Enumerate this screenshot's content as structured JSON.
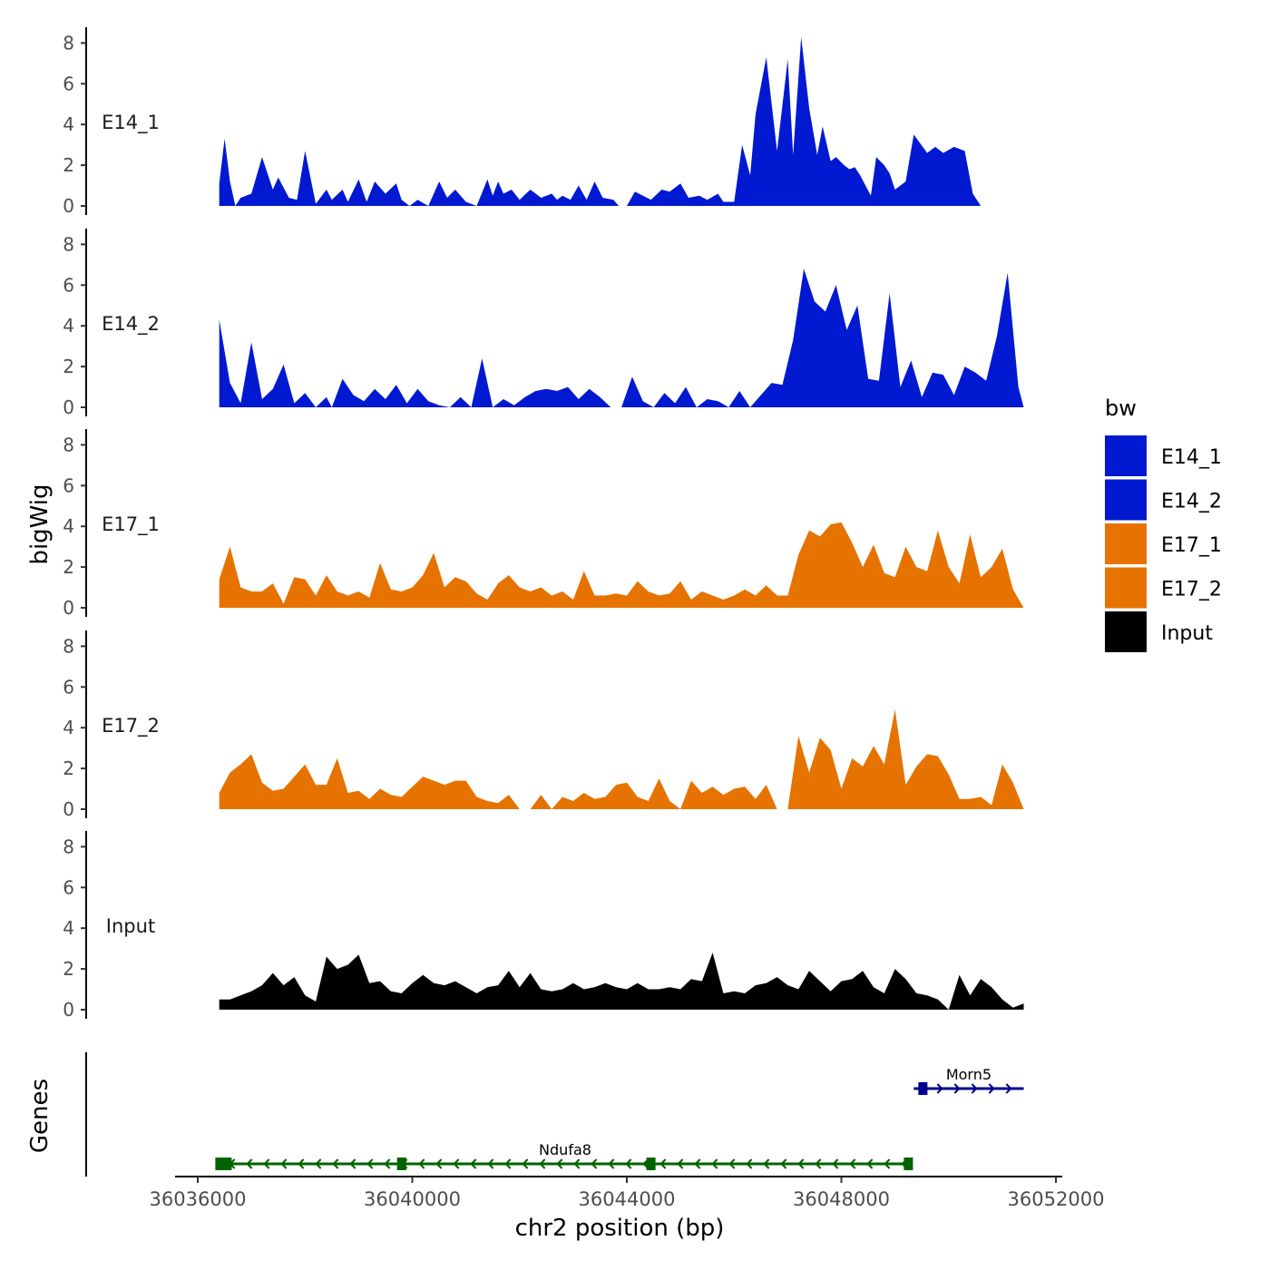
{
  "chart_data": {
    "type": "area",
    "title": "",
    "ylabel": "bigWig",
    "genes_label": "Genes",
    "xlabel": "chr2 position (bp)",
    "x_ticks": [
      36036000,
      36040000,
      36044000,
      36048000,
      36052000
    ],
    "y_ticks": [
      0,
      2,
      4,
      6,
      8
    ],
    "ylim": [
      0,
      8.5
    ],
    "x_range": [
      36036400,
      36051400
    ],
    "legend": {
      "title": "bw",
      "position": "right",
      "entries": [
        {
          "label": "E14_1",
          "color": "#0019d1"
        },
        {
          "label": "E14_2",
          "color": "#0019d1"
        },
        {
          "label": "E17_1",
          "color": "#e67300"
        },
        {
          "label": "E17_2",
          "color": "#e67300"
        },
        {
          "label": "Input",
          "color": "#000000"
        }
      ]
    },
    "series": [
      {
        "name": "E14_1",
        "color": "#0019d1",
        "x": [
          36036400,
          36036500,
          36036600,
          36036700,
          36036800,
          36037000,
          36037200,
          36037400,
          36037500,
          36037700,
          36037850,
          36038000,
          36038200,
          36038400,
          36038500,
          36038700,
          36038800,
          36039000,
          36039150,
          36039300,
          36039500,
          36039700,
          36039800,
          36039950,
          36040100,
          36040300,
          36040500,
          36040650,
          36040800,
          36041000,
          36041200,
          36041400,
          36041500,
          36041600,
          36041700,
          36041850,
          36042000,
          36042200,
          36042400,
          36042600,
          36042700,
          36042800,
          36042950,
          36043100,
          36043250,
          36043400,
          36043550,
          36043750,
          36043850,
          36044000,
          36044150,
          36044300,
          36044450,
          36044650,
          36044800,
          36045000,
          36045150,
          36045350,
          36045500,
          36045700,
          36045800,
          36046000,
          36046150,
          36046300,
          36046400,
          36046600,
          36046800,
          36047000,
          36047100,
          36047250,
          36047400,
          36047550,
          36047650,
          36047800,
          36047900,
          36048050,
          36048150,
          36048250,
          36048350,
          36048550,
          36048650,
          36048800,
          36048900,
          36049000,
          36049200,
          36049350,
          36049600,
          36049750,
          36049900,
          36050100,
          36050300,
          36050450,
          36050600,
          36050700,
          36050900,
          36051100,
          36051250,
          36051400
        ],
        "values": [
          1.1,
          3.3,
          1.2,
          0.0,
          0.4,
          0.6,
          2.4,
          0.8,
          1.4,
          0.4,
          0.3,
          2.7,
          0.1,
          0.8,
          0.3,
          0.8,
          0.2,
          1.3,
          0.2,
          1.2,
          0.6,
          1.1,
          0.3,
          0.0,
          0.3,
          0.0,
          1.2,
          0.4,
          0.8,
          0.2,
          0.0,
          1.3,
          0.5,
          1.2,
          0.6,
          0.8,
          0.3,
          0.8,
          0.4,
          0.6,
          0.3,
          0.5,
          0.3,
          1.0,
          0.3,
          1.2,
          0.4,
          0.3,
          0.0,
          0.0,
          0.7,
          0.5,
          0.3,
          0.8,
          0.7,
          1.1,
          0.4,
          0.5,
          0.3,
          0.6,
          0.2,
          0.2,
          3.0,
          1.5,
          4.5,
          7.3,
          2.7,
          7.2,
          2.5,
          8.3,
          4.8,
          2.5,
          3.9,
          2.2,
          2.4,
          2.0,
          1.8,
          1.9,
          1.5,
          0.5,
          2.4,
          2.0,
          1.6,
          0.8,
          1.2,
          3.5,
          2.6,
          2.9,
          2.6,
          2.9,
          2.7,
          0.6,
          0.0,
          0.0,
          0.0,
          0.0,
          0.0,
          0.0
        ]
      },
      {
        "name": "E14_2",
        "color": "#0019d1",
        "x": [
          36036400,
          36036600,
          36036800,
          36037000,
          36037200,
          36037400,
          36037600,
          36037800,
          36038000,
          36038200,
          36038400,
          36038500,
          36038700,
          36038900,
          36039100,
          36039300,
          36039500,
          36039700,
          36039900,
          36040100,
          36040300,
          36040500,
          36040700,
          36040900,
          36041100,
          36041300,
          36041500,
          36041700,
          36041900,
          36042100,
          36042300,
          36042500,
          36042700,
          36042900,
          36043100,
          36043300,
          36043500,
          36043700,
          36043900,
          36044100,
          36044300,
          36044500,
          36044700,
          36044900,
          36045100,
          36045300,
          36045500,
          36045700,
          36045900,
          36046100,
          36046300,
          36046500,
          36046700,
          36046900,
          36047100,
          36047300,
          36047500,
          36047700,
          36047900,
          36048100,
          36048300,
          36048500,
          36048700,
          36048900,
          36049100,
          36049300,
          36049500,
          36049700,
          36049900,
          36050100,
          36050300,
          36050500,
          36050700,
          36050900,
          36051100,
          36051300,
          36051400
        ],
        "values": [
          4.3,
          1.2,
          0.2,
          3.2,
          0.4,
          0.9,
          2.1,
          0.2,
          0.7,
          0.0,
          0.5,
          0.0,
          1.4,
          0.6,
          0.3,
          0.9,
          0.4,
          1.1,
          0.2,
          0.9,
          0.3,
          0.1,
          0.0,
          0.5,
          0.0,
          2.4,
          0.0,
          0.4,
          0.1,
          0.5,
          0.8,
          0.9,
          0.8,
          1.0,
          0.4,
          0.9,
          0.5,
          0.0,
          0.0,
          1.5,
          0.3,
          0.0,
          0.7,
          0.2,
          1.0,
          0.0,
          0.4,
          0.3,
          0.0,
          0.8,
          0.0,
          0.6,
          1.2,
          1.1,
          3.3,
          6.8,
          5.2,
          4.7,
          6.0,
          3.8,
          5.0,
          1.4,
          1.3,
          5.6,
          1.0,
          2.3,
          0.5,
          1.7,
          1.6,
          0.6,
          2.0,
          1.7,
          1.3,
          3.5,
          6.6,
          1.0,
          0.0
        ]
      },
      {
        "name": "E17_1",
        "color": "#e67300",
        "x": [
          36036400,
          36036600,
          36036800,
          36037000,
          36037200,
          36037400,
          36037600,
          36037800,
          36038000,
          36038200,
          36038400,
          36038600,
          36038800,
          36039000,
          36039200,
          36039400,
          36039600,
          36039800,
          36040000,
          36040200,
          36040400,
          36040600,
          36040800,
          36041000,
          36041200,
          36041400,
          36041600,
          36041800,
          36042000,
          36042200,
          36042400,
          36042600,
          36042800,
          36043000,
          36043200,
          36043400,
          36043600,
          36043800,
          36044000,
          36044200,
          36044400,
          36044600,
          36044800,
          36045000,
          36045200,
          36045400,
          36045600,
          36045800,
          36046000,
          36046200,
          36046400,
          36046600,
          36046800,
          36047000,
          36047200,
          36047400,
          36047600,
          36047800,
          36048000,
          36048200,
          36048400,
          36048600,
          36048800,
          36049000,
          36049200,
          36049400,
          36049600,
          36049800,
          36050000,
          36050200,
          36050400,
          36050600,
          36050800,
          36051000,
          36051200,
          36051400
        ],
        "values": [
          1.4,
          3.0,
          1.0,
          0.8,
          0.8,
          1.2,
          0.2,
          1.5,
          1.4,
          0.6,
          1.6,
          0.8,
          0.6,
          0.8,
          0.5,
          2.2,
          0.9,
          0.8,
          1.0,
          1.6,
          2.7,
          1.0,
          1.5,
          1.3,
          0.7,
          0.4,
          1.2,
          1.6,
          1.0,
          0.8,
          1.0,
          0.6,
          0.8,
          0.4,
          1.8,
          0.6,
          0.6,
          0.7,
          0.6,
          1.3,
          0.8,
          0.6,
          0.7,
          1.3,
          0.4,
          0.8,
          0.6,
          0.4,
          0.6,
          0.9,
          0.6,
          1.1,
          0.6,
          0.6,
          2.6,
          3.8,
          3.5,
          4.1,
          4.2,
          3.2,
          2.0,
          3.1,
          1.7,
          1.5,
          3.0,
          2.0,
          1.8,
          3.8,
          2.0,
          1.2,
          3.6,
          1.5,
          2.0,
          2.9,
          0.9,
          0.0
        ]
      },
      {
        "name": "E17_2",
        "color": "#e67300",
        "x": [
          36036400,
          36036600,
          36036800,
          36037000,
          36037200,
          36037400,
          36037600,
          36037800,
          36038000,
          36038200,
          36038400,
          36038600,
          36038800,
          36039000,
          36039200,
          36039400,
          36039600,
          36039800,
          36040000,
          36040200,
          36040400,
          36040600,
          36040800,
          36041000,
          36041200,
          36041400,
          36041600,
          36041800,
          36042000,
          36042200,
          36042400,
          36042600,
          36042800,
          36043000,
          36043200,
          36043400,
          36043600,
          36043800,
          36044000,
          36044200,
          36044400,
          36044600,
          36044800,
          36045000,
          36045200,
          36045400,
          36045600,
          36045800,
          36046000,
          36046200,
          36046400,
          36046600,
          36046800,
          36047000,
          36047200,
          36047400,
          36047600,
          36047800,
          36048000,
          36048200,
          36048400,
          36048600,
          36048800,
          36049000,
          36049200,
          36049400,
          36049600,
          36049800,
          36050000,
          36050200,
          36050400,
          36050600,
          36050800,
          36051000,
          36051200,
          36051400
        ],
        "values": [
          0.8,
          1.8,
          2.2,
          2.7,
          1.3,
          0.9,
          1.0,
          1.6,
          2.2,
          1.2,
          1.2,
          2.5,
          0.8,
          0.9,
          0.5,
          1.0,
          0.7,
          0.6,
          1.1,
          1.6,
          1.4,
          1.2,
          1.4,
          1.4,
          0.6,
          0.4,
          0.3,
          0.7,
          0.0,
          0.0,
          0.7,
          0.0,
          0.6,
          0.4,
          0.8,
          0.5,
          0.6,
          1.2,
          1.3,
          0.6,
          0.4,
          1.5,
          0.4,
          0.0,
          1.4,
          0.8,
          1.1,
          0.7,
          1.0,
          1.1,
          0.5,
          1.2,
          0.0,
          0.0,
          3.6,
          1.8,
          3.5,
          2.9,
          1.0,
          2.5,
          2.1,
          3.1,
          2.2,
          4.9,
          1.2,
          2.1,
          2.7,
          2.6,
          1.7,
          0.5,
          0.5,
          0.6,
          0.2,
          2.2,
          1.3,
          0.0
        ]
      },
      {
        "name": "Input",
        "color": "#000000",
        "x": [
          36036400,
          36036600,
          36036800,
          36037000,
          36037200,
          36037400,
          36037600,
          36037800,
          36038000,
          36038200,
          36038400,
          36038600,
          36038800,
          36039000,
          36039200,
          36039400,
          36039600,
          36039800,
          36040000,
          36040200,
          36040400,
          36040600,
          36040800,
          36041000,
          36041200,
          36041400,
          36041600,
          36041800,
          36042000,
          36042200,
          36042400,
          36042600,
          36042800,
          36043000,
          36043200,
          36043400,
          36043600,
          36043800,
          36044000,
          36044200,
          36044400,
          36044600,
          36044800,
          36045000,
          36045200,
          36045400,
          36045600,
          36045800,
          36046000,
          36046200,
          36046400,
          36046600,
          36046800,
          36047000,
          36047200,
          36047400,
          36047600,
          36047800,
          36048000,
          36048200,
          36048400,
          36048600,
          36048800,
          36049000,
          36049200,
          36049400,
          36049600,
          36049800,
          36050000,
          36050200,
          36050400,
          36050600,
          36050800,
          36051000,
          36051200,
          36051400
        ],
        "values": [
          0.5,
          0.5,
          0.7,
          0.9,
          1.2,
          1.8,
          1.2,
          1.6,
          0.7,
          0.4,
          2.6,
          2.0,
          2.2,
          2.7,
          1.3,
          1.4,
          0.9,
          0.8,
          1.3,
          1.7,
          1.3,
          1.2,
          1.4,
          1.1,
          0.8,
          1.1,
          1.2,
          1.9,
          1.1,
          1.8,
          1.0,
          0.9,
          1.0,
          1.3,
          1.0,
          1.1,
          1.3,
          1.1,
          1.0,
          1.3,
          1.0,
          1.0,
          1.1,
          1.0,
          1.5,
          1.4,
          2.8,
          0.8,
          0.9,
          0.8,
          1.2,
          1.3,
          1.6,
          1.2,
          1.0,
          1.9,
          1.4,
          0.9,
          1.4,
          1.5,
          1.9,
          1.1,
          0.8,
          2.0,
          1.5,
          0.8,
          0.7,
          0.5,
          0.0,
          1.7,
          0.7,
          1.5,
          1.1,
          0.5,
          0.1,
          0.3
        ]
      }
    ],
    "genes": [
      {
        "name": "Ndufa8",
        "start": 36036400,
        "end": 36049300,
        "strand": "-",
        "color": "#006400",
        "exons": [
          36036480,
          36039800,
          36044450,
          36049250
        ]
      },
      {
        "name": "Morn5",
        "start": 36049350,
        "end": 36051400,
        "strand": "+",
        "color": "#00008b",
        "exons": [
          36049520
        ]
      }
    ]
  }
}
